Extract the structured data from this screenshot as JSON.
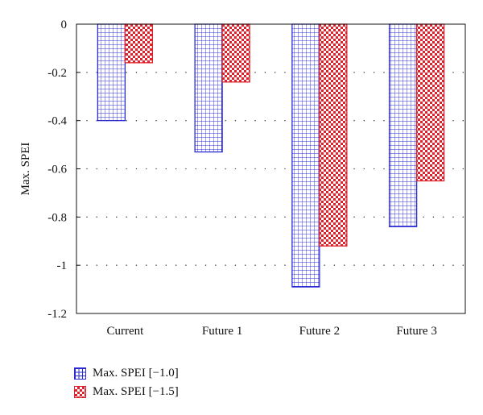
{
  "chart_data": {
    "type": "bar",
    "categories": [
      "Current",
      "Future 1",
      "Future 2",
      "Future 3"
    ],
    "series": [
      {
        "name": "Max. SPEI [−1.0]",
        "values": [
          -0.4,
          -0.53,
          -1.09,
          -0.84
        ]
      },
      {
        "name": "Max. SPEI [−1.5]",
        "values": [
          -0.16,
          -0.24,
          -0.92,
          -0.65
        ]
      }
    ],
    "title": "",
    "xlabel": "",
    "ylabel": "Max. SPEI",
    "ylim": [
      -1.2,
      0
    ],
    "yticks": [
      0,
      -0.2,
      -0.4,
      -0.6,
      -0.8,
      -1,
      -1.2
    ],
    "ytick_labels": [
      "0",
      "-0.2",
      "-0.4",
      "-0.6",
      "-0.8",
      "-1",
      "-1.2"
    ],
    "grid": "horizontal-dotted",
    "legend_position": "bottom-left",
    "colors": {
      "series1": "#2b2bd6",
      "series2": "#e0202a"
    }
  }
}
